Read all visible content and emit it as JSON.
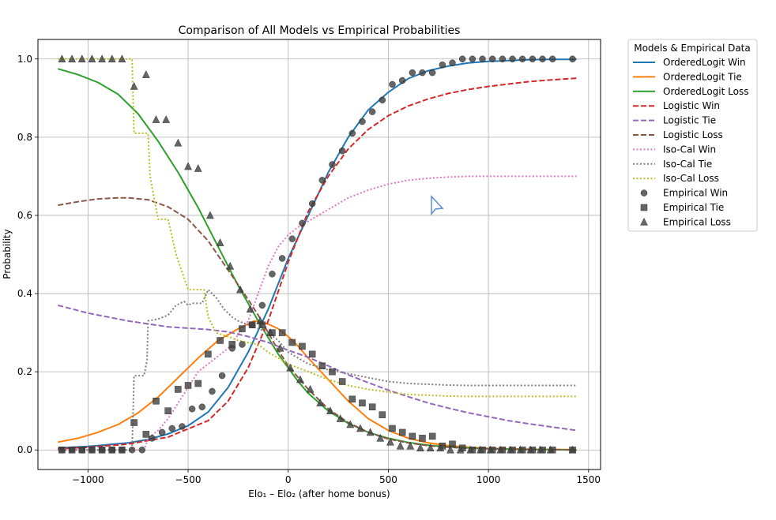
{
  "chart_data": {
    "type": "line",
    "title": "Comparison of All Models vs Empirical Probabilities",
    "xlabel": "Elo₁ – Elo₂ (after home bonus)",
    "ylabel": "Probability",
    "xlim": [
      -1250,
      1560
    ],
    "ylim": [
      -0.05,
      1.05
    ],
    "xticks": [
      -1000,
      -500,
      0,
      500,
      1000,
      1500
    ],
    "xtick_labels": [
      "−1000",
      "−500",
      "0",
      "500",
      "1000",
      "1500"
    ],
    "yticks": [
      0.0,
      0.2,
      0.4,
      0.6,
      0.8,
      1.0
    ],
    "ytick_labels": [
      "0.0",
      "0.2",
      "0.4",
      "0.6",
      "0.8",
      "1.0"
    ],
    "grid": true,
    "legend": {
      "title": "Models & Empirical Data",
      "placement": "outside right, top"
    },
    "series": [
      {
        "name": "OrderedLogit Win",
        "color": "#1f77b4",
        "style": "solid",
        "x": [
          -1150,
          -1000,
          -800,
          -700,
          -600,
          -500,
          -400,
          -300,
          -200,
          -100,
          0,
          100,
          200,
          300,
          400,
          500,
          600,
          700,
          800,
          900,
          1000,
          1100,
          1200,
          1300,
          1440
        ],
        "y": [
          0.005,
          0.009,
          0.018,
          0.027,
          0.041,
          0.062,
          0.097,
          0.16,
          0.25,
          0.36,
          0.49,
          0.6,
          0.71,
          0.8,
          0.87,
          0.915,
          0.95,
          0.97,
          0.982,
          0.99,
          0.994,
          0.996,
          0.998,
          0.999,
          0.999
        ]
      },
      {
        "name": "OrderedLogit Tie",
        "color": "#ff7f0e",
        "style": "solid",
        "x": [
          -1150,
          -1050,
          -950,
          -850,
          -750,
          -650,
          -550,
          -450,
          -350,
          -250,
          -170,
          -100,
          -50,
          0,
          50,
          100,
          200,
          300,
          400,
          500,
          600,
          700,
          800,
          900,
          1000,
          1100,
          1200,
          1300,
          1440
        ],
        "y": [
          0.02,
          0.03,
          0.045,
          0.065,
          0.095,
          0.135,
          0.185,
          0.235,
          0.28,
          0.31,
          0.33,
          0.322,
          0.31,
          0.29,
          0.265,
          0.235,
          0.18,
          0.125,
          0.08,
          0.05,
          0.03,
          0.018,
          0.011,
          0.007,
          0.004,
          0.003,
          0.002,
          0.001,
          0.001
        ]
      },
      {
        "name": "OrderedLogit Loss",
        "color": "#2ca02c",
        "style": "solid",
        "x": [
          -1150,
          -1050,
          -950,
          -850,
          -750,
          -650,
          -550,
          -450,
          -350,
          -250,
          -150,
          -50,
          0,
          50,
          100,
          200,
          300,
          400,
          500,
          600,
          700,
          800,
          900,
          1000,
          1100,
          1200,
          1300,
          1440
        ],
        "y": [
          0.975,
          0.96,
          0.94,
          0.91,
          0.86,
          0.79,
          0.71,
          0.62,
          0.52,
          0.42,
          0.33,
          0.245,
          0.21,
          0.175,
          0.145,
          0.1,
          0.068,
          0.045,
          0.03,
          0.019,
          0.012,
          0.008,
          0.005,
          0.003,
          0.002,
          0.001,
          0.001,
          0.0
        ]
      },
      {
        "name": "Logistic Win",
        "color": "#d62728",
        "style": "dashed",
        "x": [
          -1150,
          -1000,
          -800,
          -600,
          -400,
          -300,
          -200,
          -100,
          0,
          100,
          200,
          300,
          400,
          500,
          600,
          700,
          800,
          900,
          1000,
          1100,
          1200,
          1300,
          1440
        ],
        "y": [
          0.003,
          0.007,
          0.015,
          0.033,
          0.075,
          0.125,
          0.21,
          0.33,
          0.48,
          0.61,
          0.7,
          0.77,
          0.82,
          0.855,
          0.88,
          0.898,
          0.912,
          0.922,
          0.93,
          0.936,
          0.942,
          0.946,
          0.951
        ]
      },
      {
        "name": "Logistic Tie",
        "color": "#9467bd",
        "style": "dashed",
        "x": [
          -1150,
          -1000,
          -800,
          -600,
          -400,
          -300,
          -200,
          -100,
          0,
          100,
          200,
          300,
          400,
          500,
          600,
          700,
          800,
          900,
          1000,
          1100,
          1200,
          1300,
          1440
        ],
        "y": [
          0.37,
          0.35,
          0.33,
          0.315,
          0.308,
          0.302,
          0.29,
          0.275,
          0.255,
          0.237,
          0.215,
          0.192,
          0.172,
          0.153,
          0.136,
          0.12,
          0.107,
          0.095,
          0.085,
          0.075,
          0.067,
          0.06,
          0.05
        ]
      },
      {
        "name": "Logistic Loss",
        "color": "#8c564b",
        "style": "dashed",
        "x": [
          -1150,
          -1050,
          -950,
          -850,
          -800,
          -700,
          -600,
          -500,
          -400,
          -300,
          -200,
          -150,
          -100,
          -50,
          0,
          100,
          200,
          300,
          400,
          500,
          600,
          700,
          800,
          900,
          1000,
          1100,
          1200,
          1300,
          1440
        ],
        "y": [
          0.626,
          0.635,
          0.642,
          0.645,
          0.645,
          0.64,
          0.622,
          0.59,
          0.535,
          0.46,
          0.385,
          0.345,
          0.3,
          0.255,
          0.215,
          0.155,
          0.105,
          0.07,
          0.045,
          0.028,
          0.018,
          0.011,
          0.007,
          0.004,
          0.003,
          0.002,
          0.001,
          0.001,
          0.0
        ]
      },
      {
        "name": "Iso-Cal Win",
        "color": "#e377c2",
        "style": "dotted",
        "x": [
          -1150,
          -900,
          -720,
          -700,
          -650,
          -600,
          -550,
          -500,
          -450,
          -400,
          -300,
          -200,
          -150,
          -100,
          -50,
          0,
          50,
          100,
          150,
          200,
          300,
          400,
          500,
          600,
          700,
          800,
          900,
          1000,
          1200,
          1440
        ],
        "y": [
          0.0,
          0.0,
          0.0,
          0.03,
          0.05,
          0.08,
          0.12,
          0.16,
          0.2,
          0.22,
          0.26,
          0.33,
          0.4,
          0.47,
          0.52,
          0.55,
          0.57,
          0.585,
          0.6,
          0.615,
          0.645,
          0.665,
          0.68,
          0.69,
          0.695,
          0.698,
          0.7,
          0.7,
          0.7,
          0.7
        ]
      },
      {
        "name": "Iso-Cal Tie",
        "color": "#7f7f7f",
        "style": "dotted",
        "x": [
          -1150,
          -780,
          -770,
          -720,
          -705,
          -700,
          -650,
          -600,
          -560,
          -520,
          -500,
          -480,
          -430,
          -400,
          -360,
          -320,
          -280,
          -250,
          -200,
          -150,
          -100,
          -50,
          0,
          100,
          200,
          300,
          400,
          500,
          600,
          700,
          800,
          900,
          1000,
          1200,
          1440
        ],
        "y": [
          0.0,
          0.0,
          0.19,
          0.19,
          0.23,
          0.33,
          0.335,
          0.345,
          0.37,
          0.38,
          0.37,
          0.375,
          0.375,
          0.41,
          0.39,
          0.36,
          0.34,
          0.33,
          0.32,
          0.31,
          0.3,
          0.28,
          0.25,
          0.22,
          0.205,
          0.195,
          0.185,
          0.175,
          0.17,
          0.168,
          0.166,
          0.165,
          0.165,
          0.165,
          0.165
        ]
      },
      {
        "name": "Iso-Cal Loss",
        "color": "#bcbd22",
        "style": "dotted",
        "x": [
          -1150,
          -780,
          -770,
          -700,
          -690,
          -650,
          -600,
          -560,
          -540,
          -500,
          -420,
          -400,
          -360,
          -300,
          -250,
          -200,
          -150,
          -100,
          -50,
          0,
          100,
          200,
          300,
          400,
          500,
          600,
          700,
          800,
          900,
          1000,
          1200,
          1440
        ],
        "y": [
          1.0,
          1.0,
          0.81,
          0.81,
          0.7,
          0.59,
          0.59,
          0.5,
          0.47,
          0.41,
          0.41,
          0.34,
          0.3,
          0.29,
          0.28,
          0.275,
          0.27,
          0.25,
          0.235,
          0.22,
          0.2,
          0.18,
          0.165,
          0.155,
          0.148,
          0.142,
          0.14,
          0.138,
          0.137,
          0.137,
          0.137,
          0.137
        ]
      }
    ],
    "empirical": [
      {
        "name": "Empirical Win",
        "marker": "circle",
        "x": [
          -1130,
          -1080,
          -1030,
          -980,
          -930,
          -880,
          -830,
          -780,
          -730,
          -680,
          -630,
          -580,
          -530,
          -480,
          -430,
          -380,
          -330,
          -280,
          -230,
          -180,
          -130,
          -80,
          -30,
          20,
          70,
          120,
          170,
          220,
          270,
          320,
          370,
          420,
          470,
          520,
          570,
          620,
          670,
          720,
          770,
          820,
          870,
          920,
          970,
          1020,
          1070,
          1120,
          1170,
          1220,
          1270,
          1320,
          1420
        ],
        "y": [
          0.0,
          0.0,
          0.0,
          0.0,
          0.0,
          0.0,
          0.0,
          0.0,
          0.0,
          0.03,
          0.045,
          0.055,
          0.06,
          0.105,
          0.11,
          0.15,
          0.19,
          0.26,
          0.27,
          0.32,
          0.37,
          0.45,
          0.49,
          0.54,
          0.58,
          0.63,
          0.69,
          0.73,
          0.765,
          0.81,
          0.84,
          0.865,
          0.895,
          0.935,
          0.945,
          0.965,
          0.965,
          0.965,
          0.985,
          0.99,
          1.0,
          1.0,
          1.0,
          1.0,
          1.0,
          1.0,
          1.0,
          1.0,
          1.0,
          1.0,
          1.0
        ]
      },
      {
        "name": "Empirical Tie",
        "marker": "square",
        "x": [
          -1130,
          -1080,
          -1030,
          -980,
          -930,
          -880,
          -830,
          -770,
          -710,
          -660,
          -600,
          -550,
          -500,
          -450,
          -400,
          -340,
          -280,
          -230,
          -180,
          -130,
          -80,
          -30,
          20,
          70,
          120,
          170,
          220,
          270,
          320,
          370,
          420,
          470,
          520,
          570,
          620,
          670,
          720,
          770,
          820,
          870,
          920,
          970,
          1020,
          1070,
          1120,
          1170,
          1220,
          1270,
          1320,
          1420
        ],
        "y": [
          0.0,
          0.0,
          0.0,
          0.0,
          0.0,
          0.0,
          0.0,
          0.07,
          0.04,
          0.125,
          0.1,
          0.155,
          0.165,
          0.17,
          0.245,
          0.28,
          0.27,
          0.31,
          0.32,
          0.32,
          0.3,
          0.3,
          0.275,
          0.265,
          0.245,
          0.215,
          0.2,
          0.175,
          0.13,
          0.12,
          0.11,
          0.09,
          0.055,
          0.045,
          0.035,
          0.03,
          0.035,
          0.01,
          0.015,
          0.005,
          0.0,
          0.0,
          0.0,
          0.0,
          0.0,
          0.0,
          0.0,
          0.0,
          0.0,
          0.0
        ]
      },
      {
        "name": "Empirical Loss",
        "marker": "triangle",
        "x": [
          -1130,
          -1080,
          -1030,
          -980,
          -930,
          -880,
          -830,
          -770,
          -710,
          -660,
          -610,
          -550,
          -500,
          -450,
          -390,
          -340,
          -290,
          -240,
          -190,
          -140,
          -90,
          -40,
          10,
          60,
          110,
          160,
          210,
          260,
          310,
          360,
          410,
          460,
          510,
          560,
          610,
          660,
          710,
          760,
          810,
          860,
          910,
          960,
          1010,
          1060,
          1110,
          1160,
          1210,
          1260,
          1310,
          1420
        ],
        "y": [
          1.0,
          1.0,
          1.0,
          1.0,
          1.0,
          1.0,
          1.0,
          0.93,
          0.96,
          0.845,
          0.845,
          0.785,
          0.725,
          0.72,
          0.6,
          0.53,
          0.47,
          0.41,
          0.36,
          0.33,
          0.3,
          0.26,
          0.21,
          0.18,
          0.155,
          0.12,
          0.1,
          0.08,
          0.065,
          0.055,
          0.045,
          0.03,
          0.02,
          0.01,
          0.01,
          0.005,
          0.005,
          0.005,
          0.0,
          0.0,
          0.0,
          0.0,
          0.0,
          0.0,
          0.0,
          0.0,
          0.0,
          0.0,
          0.0,
          0.0
        ]
      }
    ]
  }
}
